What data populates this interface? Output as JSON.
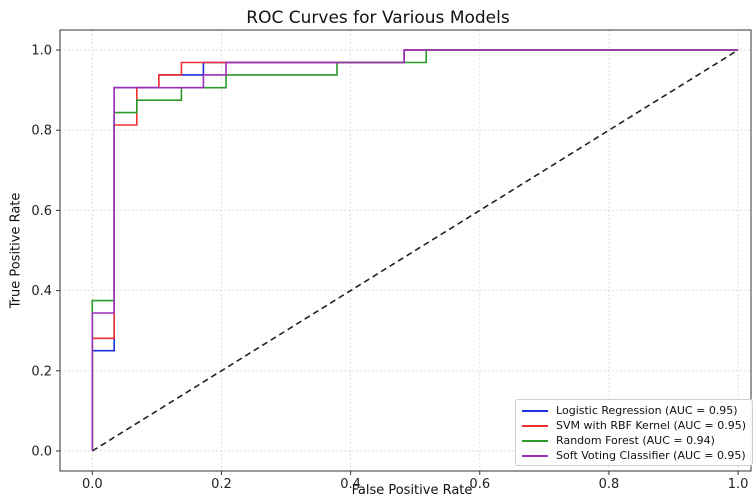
{
  "chart_data": {
    "type": "line",
    "title": "ROC Curves for Various Models",
    "xlabel": "False Positive Rate",
    "ylabel": "True Positive Rate",
    "xlim": [
      -0.05,
      1.02
    ],
    "ylim": [
      -0.05,
      1.05
    ],
    "xticks": [
      "0.0",
      "0.2",
      "0.4",
      "0.6",
      "0.8",
      "1.0"
    ],
    "yticks": [
      "0.0",
      "0.2",
      "0.4",
      "0.6",
      "0.8",
      "1.0"
    ],
    "grid": true,
    "legend_position": "bottom-right",
    "series": [
      {
        "name": "Logistic Regression (AUC = 0.95)",
        "color": "#1f2fe0",
        "points": [
          [
            0,
            0
          ],
          [
            0,
            0.25
          ],
          [
            0.034,
            0.25
          ],
          [
            0.034,
            0.906
          ],
          [
            0.103,
            0.906
          ],
          [
            0.103,
            0.938
          ],
          [
            0.172,
            0.938
          ],
          [
            0.172,
            0.969
          ],
          [
            0.483,
            0.969
          ],
          [
            0.483,
            1.0
          ],
          [
            1.0,
            1.0
          ]
        ]
      },
      {
        "name": "SVM with RBF Kernel (AUC = 0.95)",
        "color": "#f03030",
        "points": [
          [
            0,
            0
          ],
          [
            0,
            0.281
          ],
          [
            0.034,
            0.281
          ],
          [
            0.034,
            0.813
          ],
          [
            0.069,
            0.813
          ],
          [
            0.069,
            0.906
          ],
          [
            0.103,
            0.906
          ],
          [
            0.103,
            0.938
          ],
          [
            0.138,
            0.938
          ],
          [
            0.138,
            0.969
          ],
          [
            0.483,
            0.969
          ],
          [
            0.483,
            1.0
          ],
          [
            1.0,
            1.0
          ]
        ]
      },
      {
        "name": "Random Forest (AUC = 0.94)",
        "color": "#2a9a2a",
        "points": [
          [
            0,
            0
          ],
          [
            0,
            0.375
          ],
          [
            0.034,
            0.375
          ],
          [
            0.034,
            0.844
          ],
          [
            0.069,
            0.844
          ],
          [
            0.069,
            0.875
          ],
          [
            0.138,
            0.875
          ],
          [
            0.138,
            0.906
          ],
          [
            0.207,
            0.906
          ],
          [
            0.207,
            0.938
          ],
          [
            0.379,
            0.938
          ],
          [
            0.379,
            0.969
          ],
          [
            0.517,
            0.969
          ],
          [
            0.517,
            1.0
          ],
          [
            1.0,
            1.0
          ]
        ]
      },
      {
        "name": "Soft Voting Classifier (AUC = 0.95)",
        "color": "#9a2fb8",
        "points": [
          [
            0,
            0
          ],
          [
            0,
            0.344
          ],
          [
            0.034,
            0.344
          ],
          [
            0.034,
            0.906
          ],
          [
            0.172,
            0.906
          ],
          [
            0.172,
            0.938
          ],
          [
            0.207,
            0.938
          ],
          [
            0.207,
            0.969
          ],
          [
            0.483,
            0.969
          ],
          [
            0.483,
            1.0
          ],
          [
            1.0,
            1.0
          ]
        ]
      }
    ],
    "diagonal": {
      "points": [
        [
          0,
          0
        ],
        [
          1,
          1
        ]
      ],
      "style": "dashed",
      "color": "#222222"
    }
  }
}
